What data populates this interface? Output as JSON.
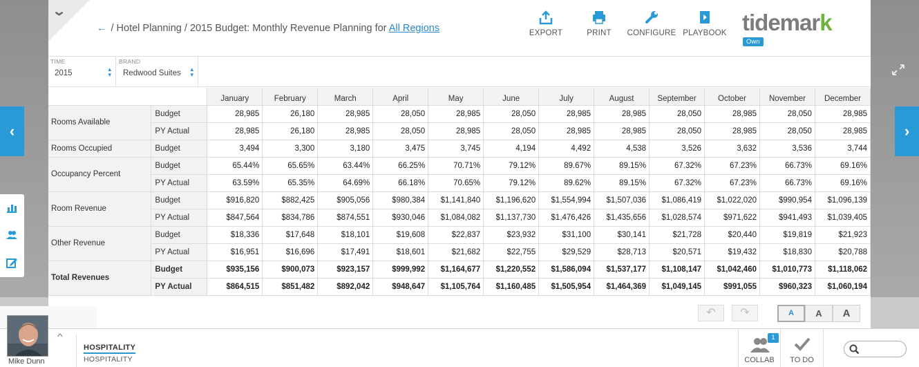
{
  "breadcrumb": {
    "back_arrow": "←",
    "path": "/ Hotel Planning / 2015 Budget:  Monthly Revenue Planning for",
    "link": "All Regions"
  },
  "toolbar": {
    "export": "EXPORT",
    "print": "PRINT",
    "configure": "CONFIGURE",
    "playbook": "PLAYBOOK"
  },
  "logo": {
    "text": "tidemar",
    "k": "k",
    "badge": "Own"
  },
  "filters": {
    "time": {
      "label": "TIME",
      "value": "2015"
    },
    "brand": {
      "label": "BRAND",
      "value": "Redwood Suites"
    }
  },
  "table": {
    "months": [
      "January",
      "February",
      "March",
      "April",
      "May",
      "June",
      "July",
      "August",
      "September",
      "October",
      "November",
      "December"
    ],
    "groups": [
      {
        "name": "Rooms Available",
        "bold": false,
        "rows": [
          {
            "type": "Budget",
            "values": [
              "28,985",
              "26,180",
              "28,985",
              "28,050",
              "28,985",
              "28,050",
              "28,985",
              "28,985",
              "28,050",
              "28,985",
              "28,050",
              "28,985"
            ]
          },
          {
            "type": "PY Actual",
            "values": [
              "28,985",
              "26,180",
              "28,985",
              "28,050",
              "28,985",
              "28,050",
              "28,985",
              "28,985",
              "28,050",
              "28,985",
              "28,050",
              "28,985"
            ]
          }
        ]
      },
      {
        "name": "Rooms Occupied",
        "bold": false,
        "rows": [
          {
            "type": "Budget",
            "values": [
              "3,494",
              "3,300",
              "3,180",
              "3,475",
              "3,745",
              "4,194",
              "4,492",
              "4,538",
              "3,526",
              "3,632",
              "3,536",
              "3,744"
            ]
          }
        ]
      },
      {
        "name": "Occupancy Percent",
        "bold": false,
        "rows": [
          {
            "type": "Budget",
            "values": [
              "65.44%",
              "65.65%",
              "63.44%",
              "66.25%",
              "70.71%",
              "79.12%",
              "89.67%",
              "89.15%",
              "67.32%",
              "67.23%",
              "66.73%",
              "69.16%"
            ]
          },
          {
            "type": "PY Actual",
            "values": [
              "63.59%",
              "65.35%",
              "64.69%",
              "66.18%",
              "70.65%",
              "79.12%",
              "89.62%",
              "89.15%",
              "67.32%",
              "67.23%",
              "66.73%",
              "69.16%"
            ]
          }
        ]
      },
      {
        "name": "Room Revenue",
        "bold": false,
        "rows": [
          {
            "type": "Budget",
            "values": [
              "$916,820",
              "$882,425",
              "$905,056",
              "$980,384",
              "$1,141,840",
              "$1,196,620",
              "$1,554,994",
              "$1,507,036",
              "$1,086,419",
              "$1,022,020",
              "$990,954",
              "$1,096,139"
            ]
          },
          {
            "type": "PY Actual",
            "values": [
              "$847,564",
              "$834,786",
              "$874,551",
              "$930,046",
              "$1,084,082",
              "$1,137,730",
              "$1,476,426",
              "$1,435,656",
              "$1,028,574",
              "$971,622",
              "$941,493",
              "$1,039,405"
            ]
          }
        ]
      },
      {
        "name": "Other Revenue",
        "bold": false,
        "rows": [
          {
            "type": "Budget",
            "values": [
              "$18,336",
              "$17,648",
              "$18,101",
              "$19,608",
              "$22,837",
              "$23,932",
              "$31,100",
              "$30,141",
              "$21,728",
              "$20,440",
              "$19,819",
              "$21,923"
            ]
          },
          {
            "type": "PY Actual",
            "values": [
              "$16,951",
              "$16,696",
              "$17,491",
              "$18,601",
              "$21,682",
              "$22,755",
              "$29,529",
              "$28,713",
              "$20,571",
              "$19,432",
              "$18,830",
              "$20,788"
            ]
          }
        ]
      },
      {
        "name": "Total Revenues",
        "bold": true,
        "rows": [
          {
            "type": "Budget",
            "values": [
              "$935,156",
              "$900,073",
              "$923,157",
              "$999,992",
              "$1,164,677",
              "$1,220,552",
              "$1,586,094",
              "$1,537,177",
              "$1,108,147",
              "$1,042,460",
              "$1,010,773",
              "$1,118,062"
            ]
          },
          {
            "type": "PY Actual",
            "values": [
              "$864,515",
              "$851,482",
              "$892,042",
              "$948,647",
              "$1,105,764",
              "$1,160,485",
              "$1,505,954",
              "$1,464,369",
              "$1,049,145",
              "$991,055",
              "$960,323",
              "$1,060,194"
            ]
          }
        ]
      }
    ]
  },
  "controls": {
    "undo": "↶",
    "redo": "↷",
    "font_small": "A",
    "font_medium": "A",
    "font_large": "A"
  },
  "footer": {
    "user_name": "Mike Dunn",
    "context_primary": "HOSPITALITY",
    "context_secondary": "HOSPITALITY",
    "collab_label": "COLLAB",
    "collab_count": "1",
    "todo_label": "TO DO"
  },
  "nav": {
    "left_arrow": "‹",
    "right_arrow": "›"
  },
  "colors": {
    "accent": "#2a9ad6",
    "logo_gray": "#7c7c7c",
    "logo_green": "#6db33f"
  }
}
